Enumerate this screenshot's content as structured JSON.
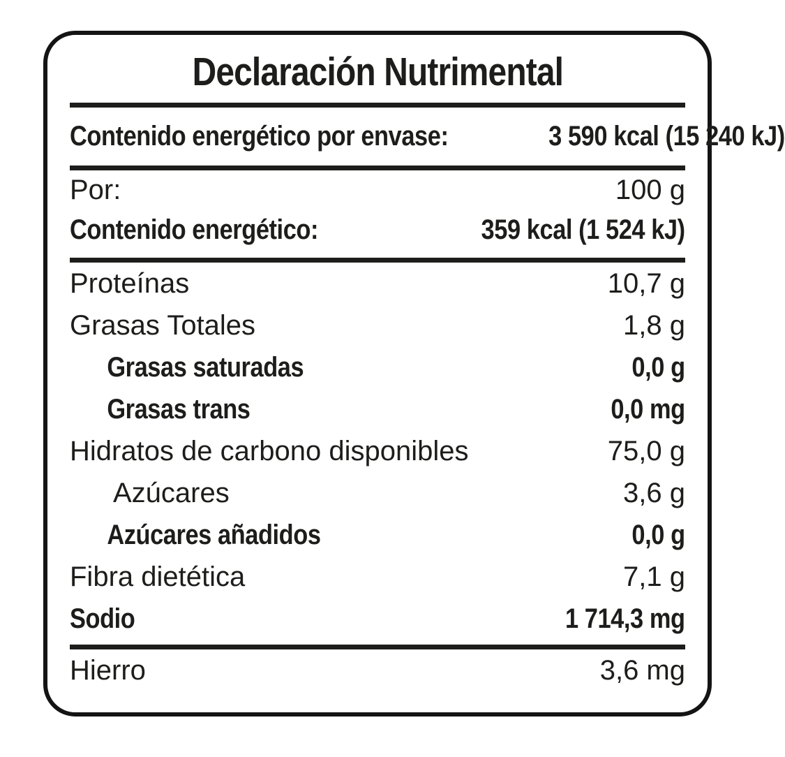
{
  "colors": {
    "text": "#1d1d1b",
    "rule": "#1d1d1b",
    "border": "#141414",
    "background": "#ffffff"
  },
  "label": {
    "title": "Declaración Nutrimental",
    "energy_per_package": {
      "name": "Contenido energético por envase:",
      "value": "3 590 kcal (15 240 kJ)"
    },
    "serving": {
      "name": "Por:",
      "value": "100 g"
    },
    "energy_per_serving": {
      "name": "Contenido energético:",
      "value": "359 kcal (1 524 kJ)"
    },
    "nutrients": [
      {
        "name": "Proteínas",
        "value": "10,7 g"
      },
      {
        "name": "Grasas Totales",
        "value": "1,8 g"
      },
      {
        "name": "Grasas saturadas",
        "value": "0,0 g"
      },
      {
        "name": "Grasas trans",
        "value": "0,0 mg"
      },
      {
        "name": "Hidratos de carbono disponibles",
        "value": "75,0 g"
      },
      {
        "name": "Azúcares",
        "value": "3,6 g"
      },
      {
        "name": "Azúcares añadidos",
        "value": "0,0 g"
      },
      {
        "name": "Fibra dietética",
        "value": "7,1 g"
      },
      {
        "name": "Sodio",
        "value": "1 714,3 mg"
      }
    ],
    "micronutrients": [
      {
        "name": "Hierro",
        "value": "3,6 mg"
      }
    ]
  }
}
